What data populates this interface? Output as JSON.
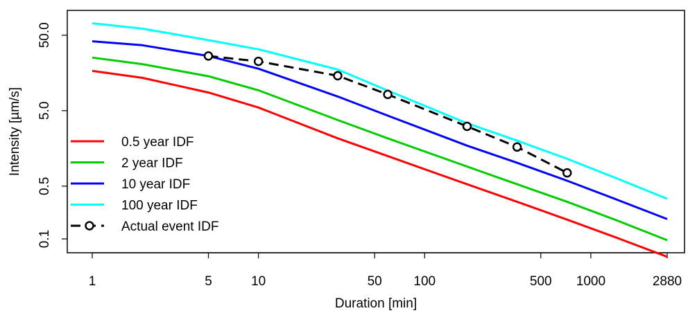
{
  "chart_data": {
    "type": "line",
    "xlabel": "Duration [min]",
    "ylabel": "Intensity [µm/s]",
    "x_scale": "log",
    "y_scale": "log",
    "xlim": [
      1,
      2880
    ],
    "ylim": [
      0.1,
      100
    ],
    "x_ticks": [
      1,
      5,
      10,
      50,
      100,
      500,
      1000,
      2880
    ],
    "x_tick_labels": [
      "1",
      "5",
      "10",
      "50",
      "100",
      "500",
      "1000",
      "2880"
    ],
    "y_ticks": [
      0.1,
      0.5,
      5.0,
      50.0
    ],
    "y_tick_labels": [
      "0.1",
      "0.5",
      "5.0",
      "50.0"
    ],
    "grid": false,
    "legend_position": "bottom-left",
    "series": [
      {
        "name": "0.5 year IDF",
        "color": "#ff0000",
        "style": "solid",
        "x": [
          1,
          2,
          5,
          10,
          30,
          60,
          180,
          360,
          720,
          1440,
          2880
        ],
        "y": [
          16.8,
          13.6,
          8.7,
          5.5,
          2.15,
          1.25,
          0.53,
          0.31,
          0.18,
          0.103,
          0.058
        ]
      },
      {
        "name": "2 year IDF",
        "color": "#00cc00",
        "style": "solid",
        "x": [
          1,
          2,
          5,
          10,
          30,
          60,
          180,
          360,
          720,
          1440,
          2880
        ],
        "y": [
          25.2,
          20.7,
          14.3,
          9.3,
          3.75,
          2.15,
          0.91,
          0.53,
          0.31,
          0.175,
          0.096
        ]
      },
      {
        "name": "10 year IDF",
        "color": "#0000ff",
        "style": "solid",
        "x": [
          1,
          2,
          5,
          10,
          30,
          60,
          180,
          360,
          720,
          1440,
          2880
        ],
        "y": [
          41.5,
          36.8,
          26.5,
          18.0,
          7.7,
          4.3,
          1.72,
          1.02,
          0.59,
          0.33,
          0.183
        ]
      },
      {
        "name": "100 year IDF",
        "color": "#00ffff",
        "style": "solid",
        "x": [
          1,
          2,
          5,
          10,
          30,
          60,
          180,
          360,
          720,
          1440,
          2880
        ],
        "y": [
          72,
          61,
          43,
          32.5,
          17.5,
          9.2,
          3.4,
          2.0,
          1.15,
          0.63,
          0.34
        ]
      },
      {
        "name": "Actual event IDF",
        "color": "#000000",
        "style": "dashed",
        "markers": "circle",
        "x": [
          5,
          10,
          30,
          60,
          180,
          360,
          720
        ],
        "y": [
          26.5,
          22.5,
          14.5,
          8.2,
          3.1,
          1.65,
          0.75
        ]
      }
    ]
  }
}
